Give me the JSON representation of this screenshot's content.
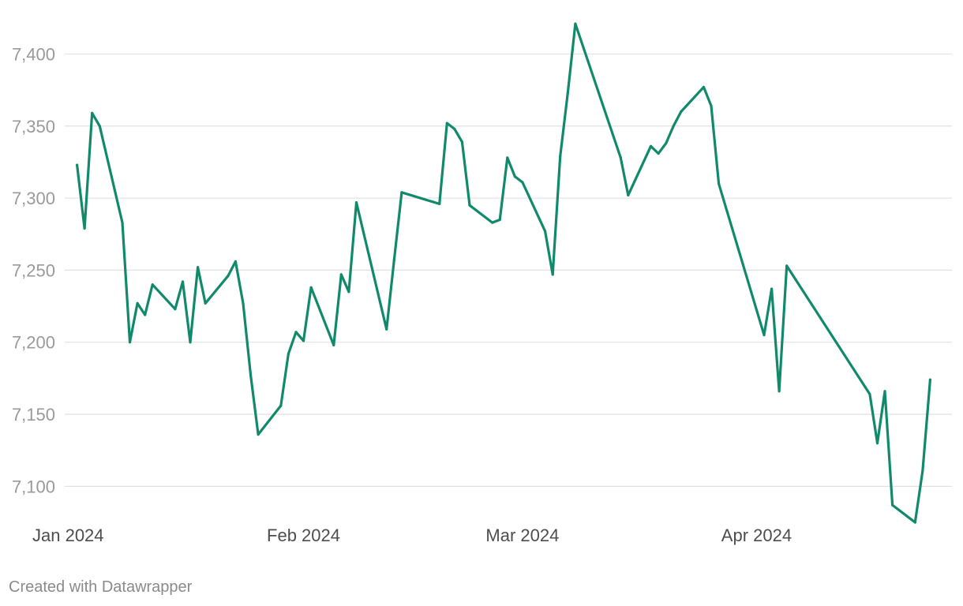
{
  "chart_data": {
    "type": "line",
    "title": "",
    "xlabel": "",
    "ylabel": "",
    "ylim": [
      7075,
      7432
    ],
    "y_ticks": [
      "7,100",
      "7,150",
      "7,200",
      "7,250",
      "7,300",
      "7,350",
      "7,400"
    ],
    "y_tick_values": [
      7100,
      7150,
      7200,
      7250,
      7300,
      7350,
      7400
    ],
    "x_ticks": [
      "Jan 2024",
      "Feb 2024",
      "Mar 2024",
      "Apr 2024"
    ],
    "x_tick_dates": [
      "2024-01-01",
      "2024-02-01",
      "2024-03-01",
      "2024-04-01"
    ],
    "xlim": [
      "2024-01-01",
      "2024-04-25"
    ],
    "grid": true,
    "line_color": "#118a6c",
    "series": [
      {
        "x": [
          "2024-01-02",
          "2024-01-03",
          "2024-01-04",
          "2024-01-05",
          "2024-01-08",
          "2024-01-09",
          "2024-01-10",
          "2024-01-11",
          "2024-01-12",
          "2024-01-15",
          "2024-01-16",
          "2024-01-17",
          "2024-01-18",
          "2024-01-19",
          "2024-01-22",
          "2024-01-23",
          "2024-01-24",
          "2024-01-25",
          "2024-01-26",
          "2024-01-29",
          "2024-01-30",
          "2024-01-31",
          "2024-02-01",
          "2024-02-02",
          "2024-02-05",
          "2024-02-06",
          "2024-02-07",
          "2024-02-08",
          "2024-02-12",
          "2024-02-13",
          "2024-02-14",
          "2024-02-19",
          "2024-02-20",
          "2024-02-21",
          "2024-02-22",
          "2024-02-23",
          "2024-02-26",
          "2024-02-27",
          "2024-02-28",
          "2024-02-29",
          "2024-03-01",
          "2024-03-04",
          "2024-03-05",
          "2024-03-06",
          "2024-03-07",
          "2024-03-08",
          "2024-03-14",
          "2024-03-15",
          "2024-03-18",
          "2024-03-19",
          "2024-03-20",
          "2024-03-21",
          "2024-03-22",
          "2024-03-25",
          "2024-03-26",
          "2024-03-27",
          "2024-04-02",
          "2024-04-03",
          "2024-04-04",
          "2024-04-05",
          "2024-04-16",
          "2024-04-17",
          "2024-04-18",
          "2024-04-19",
          "2024-04-22",
          "2024-04-23",
          "2024-04-24"
        ],
        "values": [
          7323,
          7279,
          7359,
          7350,
          7283,
          7200,
          7227,
          7219,
          7240,
          7223,
          7242,
          7200,
          7252,
          7227,
          7246,
          7256,
          7227,
          7177,
          7136,
          7156,
          7192,
          7207,
          7201,
          7238,
          7198,
          7247,
          7235,
          7297,
          7209,
          7257,
          7304,
          7296,
          7352,
          7348,
          7339,
          7295,
          7283,
          7285,
          7328,
          7315,
          7311,
          7277,
          7247,
          7329,
          7373,
          7421,
          7328,
          7302,
          7336,
          7331,
          7338,
          7350,
          7360,
          7377,
          7364,
          7310,
          7205,
          7237,
          7166,
          7253,
          7164,
          7130,
          7166,
          7087,
          7075,
          7111,
          7174
        ]
      }
    ]
  },
  "footer": {
    "credit": "Created with Datawrapper"
  }
}
